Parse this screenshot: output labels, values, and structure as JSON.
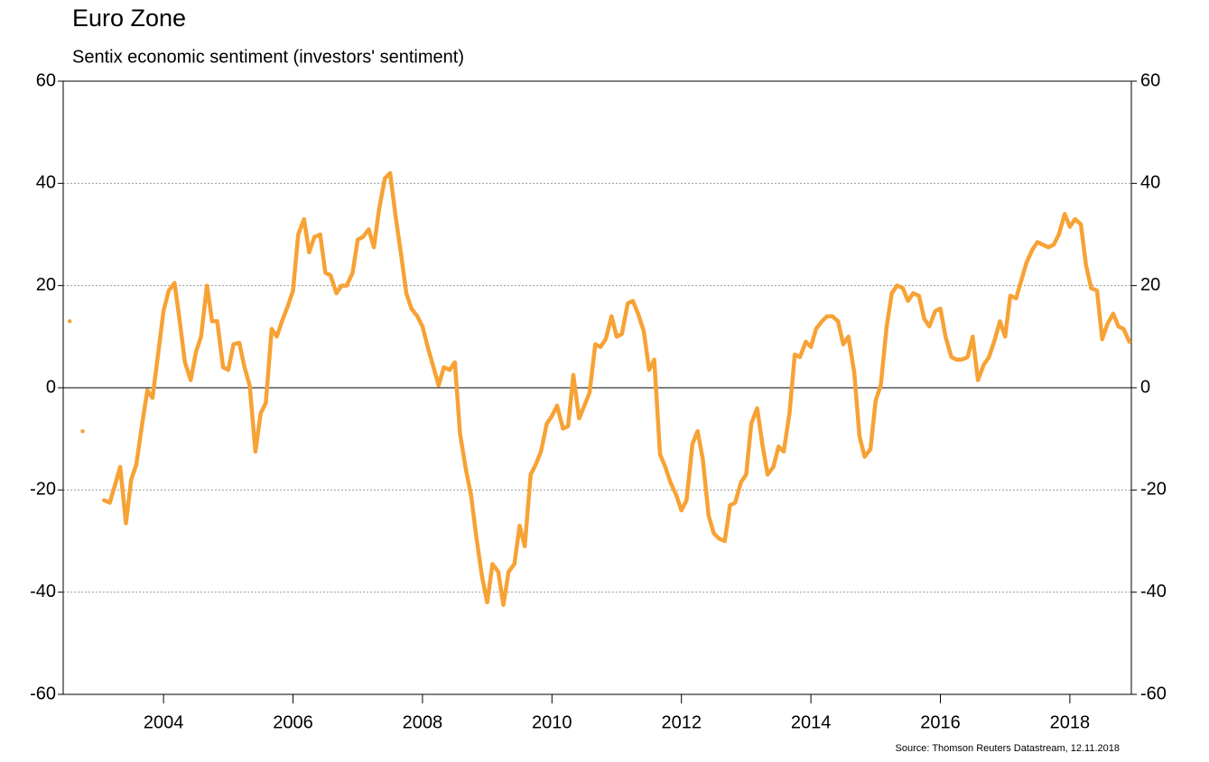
{
  "chart_data": {
    "type": "line",
    "title": "Euro Zone",
    "subtitle": "Sentix economic sentiment (investors' sentiment)",
    "source": "Source: Thomson Reuters Datastream, 12.11.2018",
    "xlim": [
      2002.45,
      2018.95
    ],
    "xticks": [
      2004,
      2006,
      2008,
      2010,
      2012,
      2014,
      2016,
      2018
    ],
    "ylim": [
      -60,
      60
    ],
    "yticks": [
      -60,
      -40,
      -20,
      0,
      20,
      40,
      60
    ],
    "grid": true,
    "x": [
      2002.55,
      null,
      2002.75,
      null,
      2003.08,
      2003.17,
      2003.25,
      2003.33,
      2003.42,
      2003.5,
      2003.58,
      2003.67,
      2003.75,
      2003.83,
      2003.92,
      2004,
      2004.08,
      2004.17,
      2004.25,
      2004.33,
      2004.42,
      2004.5,
      2004.58,
      2004.67,
      2004.75,
      2004.83,
      2004.92,
      2005,
      2005.08,
      2005.17,
      2005.25,
      2005.33,
      2005.42,
      2005.5,
      2005.58,
      2005.67,
      2005.75,
      2005.83,
      2005.92,
      2006,
      2006.08,
      2006.17,
      2006.25,
      2006.33,
      2006.42,
      2006.5,
      2006.58,
      2006.67,
      2006.75,
      2006.83,
      2006.92,
      2007,
      2007.08,
      2007.17,
      2007.25,
      2007.33,
      2007.42,
      2007.5,
      2007.58,
      2007.67,
      2007.75,
      2007.83,
      2007.92,
      2008,
      2008.08,
      2008.17,
      2008.25,
      2008.33,
      2008.42,
      2008.5,
      2008.58,
      2008.67,
      2008.75,
      2008.83,
      2008.92,
      2009,
      2009.08,
      2009.17,
      2009.25,
      2009.33,
      2009.42,
      2009.5,
      2009.58,
      2009.67,
      2009.75,
      2009.83,
      2009.92,
      2010,
      2010.08,
      2010.17,
      2010.25,
      2010.33,
      2010.42,
      2010.5,
      2010.58,
      2010.67,
      2010.75,
      2010.83,
      2010.92,
      2011,
      2011.08,
      2011.17,
      2011.25,
      2011.33,
      2011.42,
      2011.5,
      2011.58,
      2011.67,
      2011.75,
      2011.83,
      2011.92,
      2012,
      2012.08,
      2012.17,
      2012.25,
      2012.33,
      2012.42,
      2012.5,
      2012.58,
      2012.67,
      2012.75,
      2012.83,
      2012.92,
      2013,
      2013.08,
      2013.17,
      2013.25,
      2013.33,
      2013.42,
      2013.5,
      2013.58,
      2013.67,
      2013.75,
      2013.83,
      2013.92,
      2014,
      2014.08,
      2014.17,
      2014.25,
      2014.33,
      2014.42,
      2014.5,
      2014.58,
      2014.67,
      2014.75,
      2014.83,
      2014.92,
      2015,
      2015.08,
      2015.17,
      2015.25,
      2015.33,
      2015.42,
      2015.5,
      2015.58,
      2015.67,
      2015.75,
      2015.83,
      2015.92,
      2016,
      2016.08,
      2016.17,
      2016.25,
      2016.33,
      2016.42,
      2016.5,
      2016.58,
      2016.67,
      2016.75,
      2016.83,
      2016.92,
      2017,
      2017.08,
      2017.17,
      2017.25,
      2017.33,
      2017.42,
      2017.5,
      2017.58,
      2017.67,
      2017.75,
      2017.83,
      2017.92,
      2018,
      2018.08,
      2018.17,
      2018.25,
      2018.33,
      2018.42,
      2018.5,
      2018.58,
      2018.67,
      2018.75,
      2018.83,
      2018.92
    ],
    "series": [
      {
        "color": "#f7a235",
        "values": [
          13,
          null,
          -8.5,
          null,
          -22,
          -22.5,
          -19,
          -15.5,
          -26.5,
          -18,
          -15,
          -7,
          -0.5,
          -2,
          7,
          15,
          19,
          20.5,
          13,
          5,
          1.5,
          7,
          10,
          20,
          13,
          13,
          4,
          3.5,
          8.5,
          8.8,
          4,
          0.5,
          -12.5,
          -5,
          -3,
          11.5,
          10,
          13,
          16,
          19,
          30,
          33,
          26.5,
          29.5,
          30,
          22.5,
          22,
          18.5,
          20,
          20,
          22.5,
          29,
          29.5,
          31,
          27.5,
          35,
          41,
          42,
          34,
          26,
          18.5,
          15.5,
          14,
          12,
          8,
          4,
          0.5,
          4,
          3.5,
          5,
          -9,
          -16,
          -21,
          -29,
          -37,
          -42,
          -34.5,
          -36,
          -42.5,
          -36,
          -34.5,
          -27,
          -31,
          -17,
          -15,
          -12.5,
          -7,
          -5.5,
          -3.5,
          -8,
          -7.5,
          2.5,
          -6,
          -3.5,
          -1,
          8.5,
          8,
          9.5,
          14,
          10,
          10.5,
          16.5,
          17,
          14.5,
          11,
          3.5,
          5.5,
          -13,
          -15.5,
          -18.5,
          -21,
          -24,
          -22,
          -11,
          -8.5,
          -14,
          -25,
          -28.5,
          -29.5,
          -30,
          -23,
          -22.5,
          -18.5,
          -17,
          -7,
          -4,
          -11,
          -17,
          -15.5,
          -11.5,
          -12.5,
          -5,
          6.5,
          6,
          9,
          8,
          11.5,
          13,
          14,
          14,
          13,
          8.5,
          10,
          3,
          -9.5,
          -13.5,
          -12,
          -2.5,
          0.5,
          12,
          18.5,
          20,
          19.5,
          17,
          18.5,
          18,
          13.5,
          12,
          15,
          15.5,
          10,
          6,
          5.5,
          5.5,
          6,
          10,
          1.5,
          4.5,
          6,
          9,
          13,
          10,
          18,
          17.5,
          21,
          24.5,
          27,
          28.5,
          28,
          27.5,
          28,
          30,
          34,
          31.5,
          33,
          32,
          24,
          19.5,
          19,
          9.5,
          12.5,
          14.5,
          12,
          11.5,
          9
        ]
      }
    ]
  }
}
